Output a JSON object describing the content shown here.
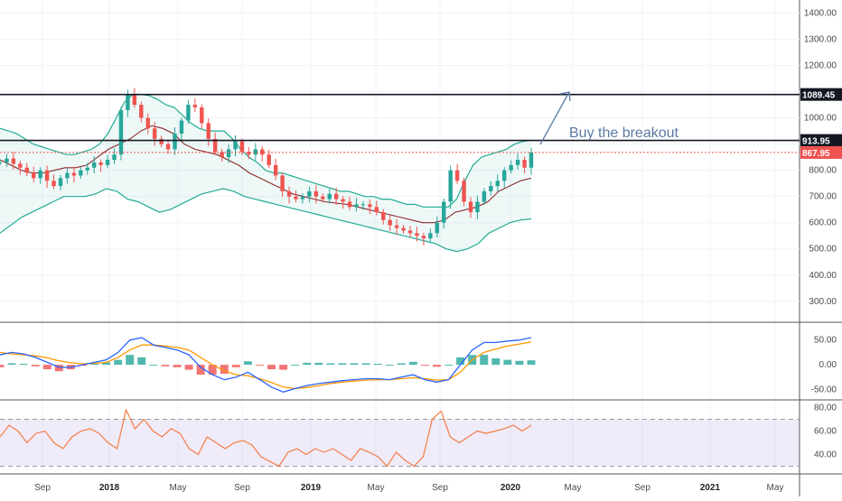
{
  "chart_data": {
    "type": "candlestick",
    "x_ticks": [
      {
        "label": "Sep",
        "bold": false
      },
      {
        "label": "2018",
        "bold": true
      },
      {
        "label": "May",
        "bold": false
      },
      {
        "label": "Sep",
        "bold": false
      },
      {
        "label": "2019",
        "bold": true
      },
      {
        "label": "May",
        "bold": false
      },
      {
        "label": "Sep",
        "bold": false
      },
      {
        "label": "2020",
        "bold": true
      },
      {
        "label": "May",
        "bold": false
      },
      {
        "label": "Sep",
        "bold": false
      },
      {
        "label": "2021",
        "bold": true
      },
      {
        "label": "May",
        "bold": false
      }
    ],
    "price_panel": {
      "ylim": [
        220,
        1450
      ],
      "y_ticks": [
        "1400.00",
        "1300.00",
        "1200.00",
        "1100.00",
        "1000.00",
        "900.00",
        "800.00",
        "700.00",
        "600.00",
        "500.00",
        "400.00",
        "300.00"
      ],
      "y_tick_values": [
        1400,
        1300,
        1200,
        1100,
        1000,
        900,
        800,
        700,
        600,
        500,
        400,
        300
      ],
      "close_series": [
        830,
        845,
        825,
        810,
        790,
        770,
        800,
        760,
        740,
        770,
        790,
        780,
        800,
        810,
        830,
        820,
        840,
        860,
        1030,
        1090,
        1050,
        1000,
        960,
        920,
        900,
        880,
        940,
        990,
        1050,
        1040,
        980,
        920,
        870,
        850,
        880,
        910,
        870,
        860,
        880,
        860,
        820,
        780,
        720,
        700,
        690,
        700,
        720,
        700,
        690,
        710,
        690,
        680,
        660,
        670,
        670,
        660,
        640,
        610,
        590,
        580,
        570,
        560,
        550,
        540,
        560,
        600,
        680,
        800,
        760,
        680,
        640,
        680,
        720,
        740,
        760,
        800,
        820,
        840,
        810,
        868
      ],
      "upper_band": [
        960,
        950,
        940,
        920,
        900,
        890,
        880,
        870,
        860,
        860,
        870,
        880,
        900,
        940,
        1000,
        1060,
        1090,
        1090,
        1085,
        1070,
        1050,
        1040,
        1010,
        980,
        960,
        950,
        950,
        950,
        920,
        880,
        850,
        830,
        800,
        790,
        790,
        780,
        770,
        760,
        750,
        740,
        730,
        720,
        720,
        710,
        700,
        700,
        690,
        690,
        680,
        670,
        670,
        660,
        660,
        660,
        660,
        690,
        760,
        820,
        850,
        860,
        870,
        880,
        900,
        910,
        915
      ],
      "middle_band": [
        840,
        820,
        800,
        790,
        790,
        800,
        810,
        810,
        820,
        850,
        880,
        900,
        920,
        950,
        970,
        960,
        940,
        900,
        880,
        870,
        860,
        840,
        820,
        790,
        770,
        750,
        730,
        710,
        700,
        690,
        680,
        675,
        670,
        660,
        650,
        640,
        630,
        620,
        610,
        600,
        600,
        610,
        640,
        650,
        660,
        680,
        720,
        740,
        760,
        770
      ],
      "lower_band": [
        560,
        590,
        620,
        640,
        660,
        680,
        700,
        700,
        700,
        710,
        730,
        720,
        690,
        680,
        660,
        640,
        650,
        670,
        690,
        710,
        720,
        730,
        720,
        700,
        690,
        680,
        670,
        660,
        650,
        640,
        630,
        620,
        610,
        600,
        590,
        580,
        570,
        560,
        550,
        540,
        530,
        520,
        500,
        490,
        500,
        520,
        560,
        580,
        600,
        610,
        615
      ],
      "levels": [
        {
          "value": 1089.45,
          "label": "1089.45",
          "color": "#131722"
        },
        {
          "value": 913.95,
          "label": "913.95",
          "color": "#131722"
        },
        {
          "value": 867.95,
          "label": "867.95",
          "color": "#ef5350"
        }
      ],
      "annotation": "Buy the breakout"
    },
    "macd_panel": {
      "ylim": [
        -60,
        75
      ],
      "y_ticks": [
        "50.00",
        "0.00",
        "-50.00"
      ],
      "y_tick_values": [
        50,
        0,
        -50
      ],
      "macd": [
        20,
        25,
        22,
        15,
        5,
        -5,
        -5,
        0,
        5,
        10,
        25,
        50,
        55,
        40,
        35,
        30,
        20,
        -5,
        -20,
        -30,
        -25,
        -15,
        -30,
        -45,
        -55,
        -48,
        -42,
        -38,
        -35,
        -32,
        -30,
        -28,
        -28,
        -30,
        -25,
        -20,
        -30,
        -35,
        -30,
        0,
        30,
        45,
        45,
        48,
        50,
        55
      ],
      "signal": [
        25,
        22,
        20,
        18,
        14,
        8,
        4,
        2,
        3,
        5,
        15,
        30,
        40,
        40,
        38,
        35,
        30,
        15,
        0,
        -12,
        -20,
        -22,
        -28,
        -36,
        -45,
        -48,
        -46,
        -42,
        -38,
        -35,
        -33,
        -31,
        -30,
        -30,
        -28,
        -26,
        -28,
        -31,
        -30,
        -15,
        10,
        25,
        32,
        38,
        42,
        46
      ],
      "hist": [
        -5,
        3,
        2,
        -3,
        -9,
        -13,
        -9,
        -2,
        2,
        5,
        10,
        20,
        15,
        0,
        -3,
        -5,
        -10,
        -20,
        -20,
        -18,
        -5,
        7,
        -2,
        -9,
        -10,
        0,
        4,
        4,
        3,
        3,
        3,
        3,
        2,
        0,
        3,
        6,
        -2,
        -4,
        0,
        15,
        20,
        20,
        13,
        10,
        8,
        9
      ]
    },
    "rsi_panel": {
      "ylim": [
        25,
        85
      ],
      "y_ticks": [
        "80.00",
        "60.00",
        "40.00"
      ],
      "y_tick_values": [
        80,
        60,
        40
      ],
      "band": [
        30,
        70
      ],
      "rsi": [
        55,
        65,
        60,
        50,
        58,
        60,
        50,
        45,
        55,
        60,
        62,
        58,
        50,
        45,
        78,
        62,
        70,
        60,
        55,
        62,
        58,
        45,
        40,
        55,
        50,
        45,
        50,
        52,
        48,
        38,
        34,
        30,
        42,
        45,
        40,
        45,
        42,
        45,
        40,
        35,
        45,
        42,
        38,
        30,
        42,
        35,
        30,
        38,
        70,
        77,
        55,
        50,
        55,
        60,
        58,
        60,
        62,
        65,
        60,
        65
      ]
    }
  }
}
